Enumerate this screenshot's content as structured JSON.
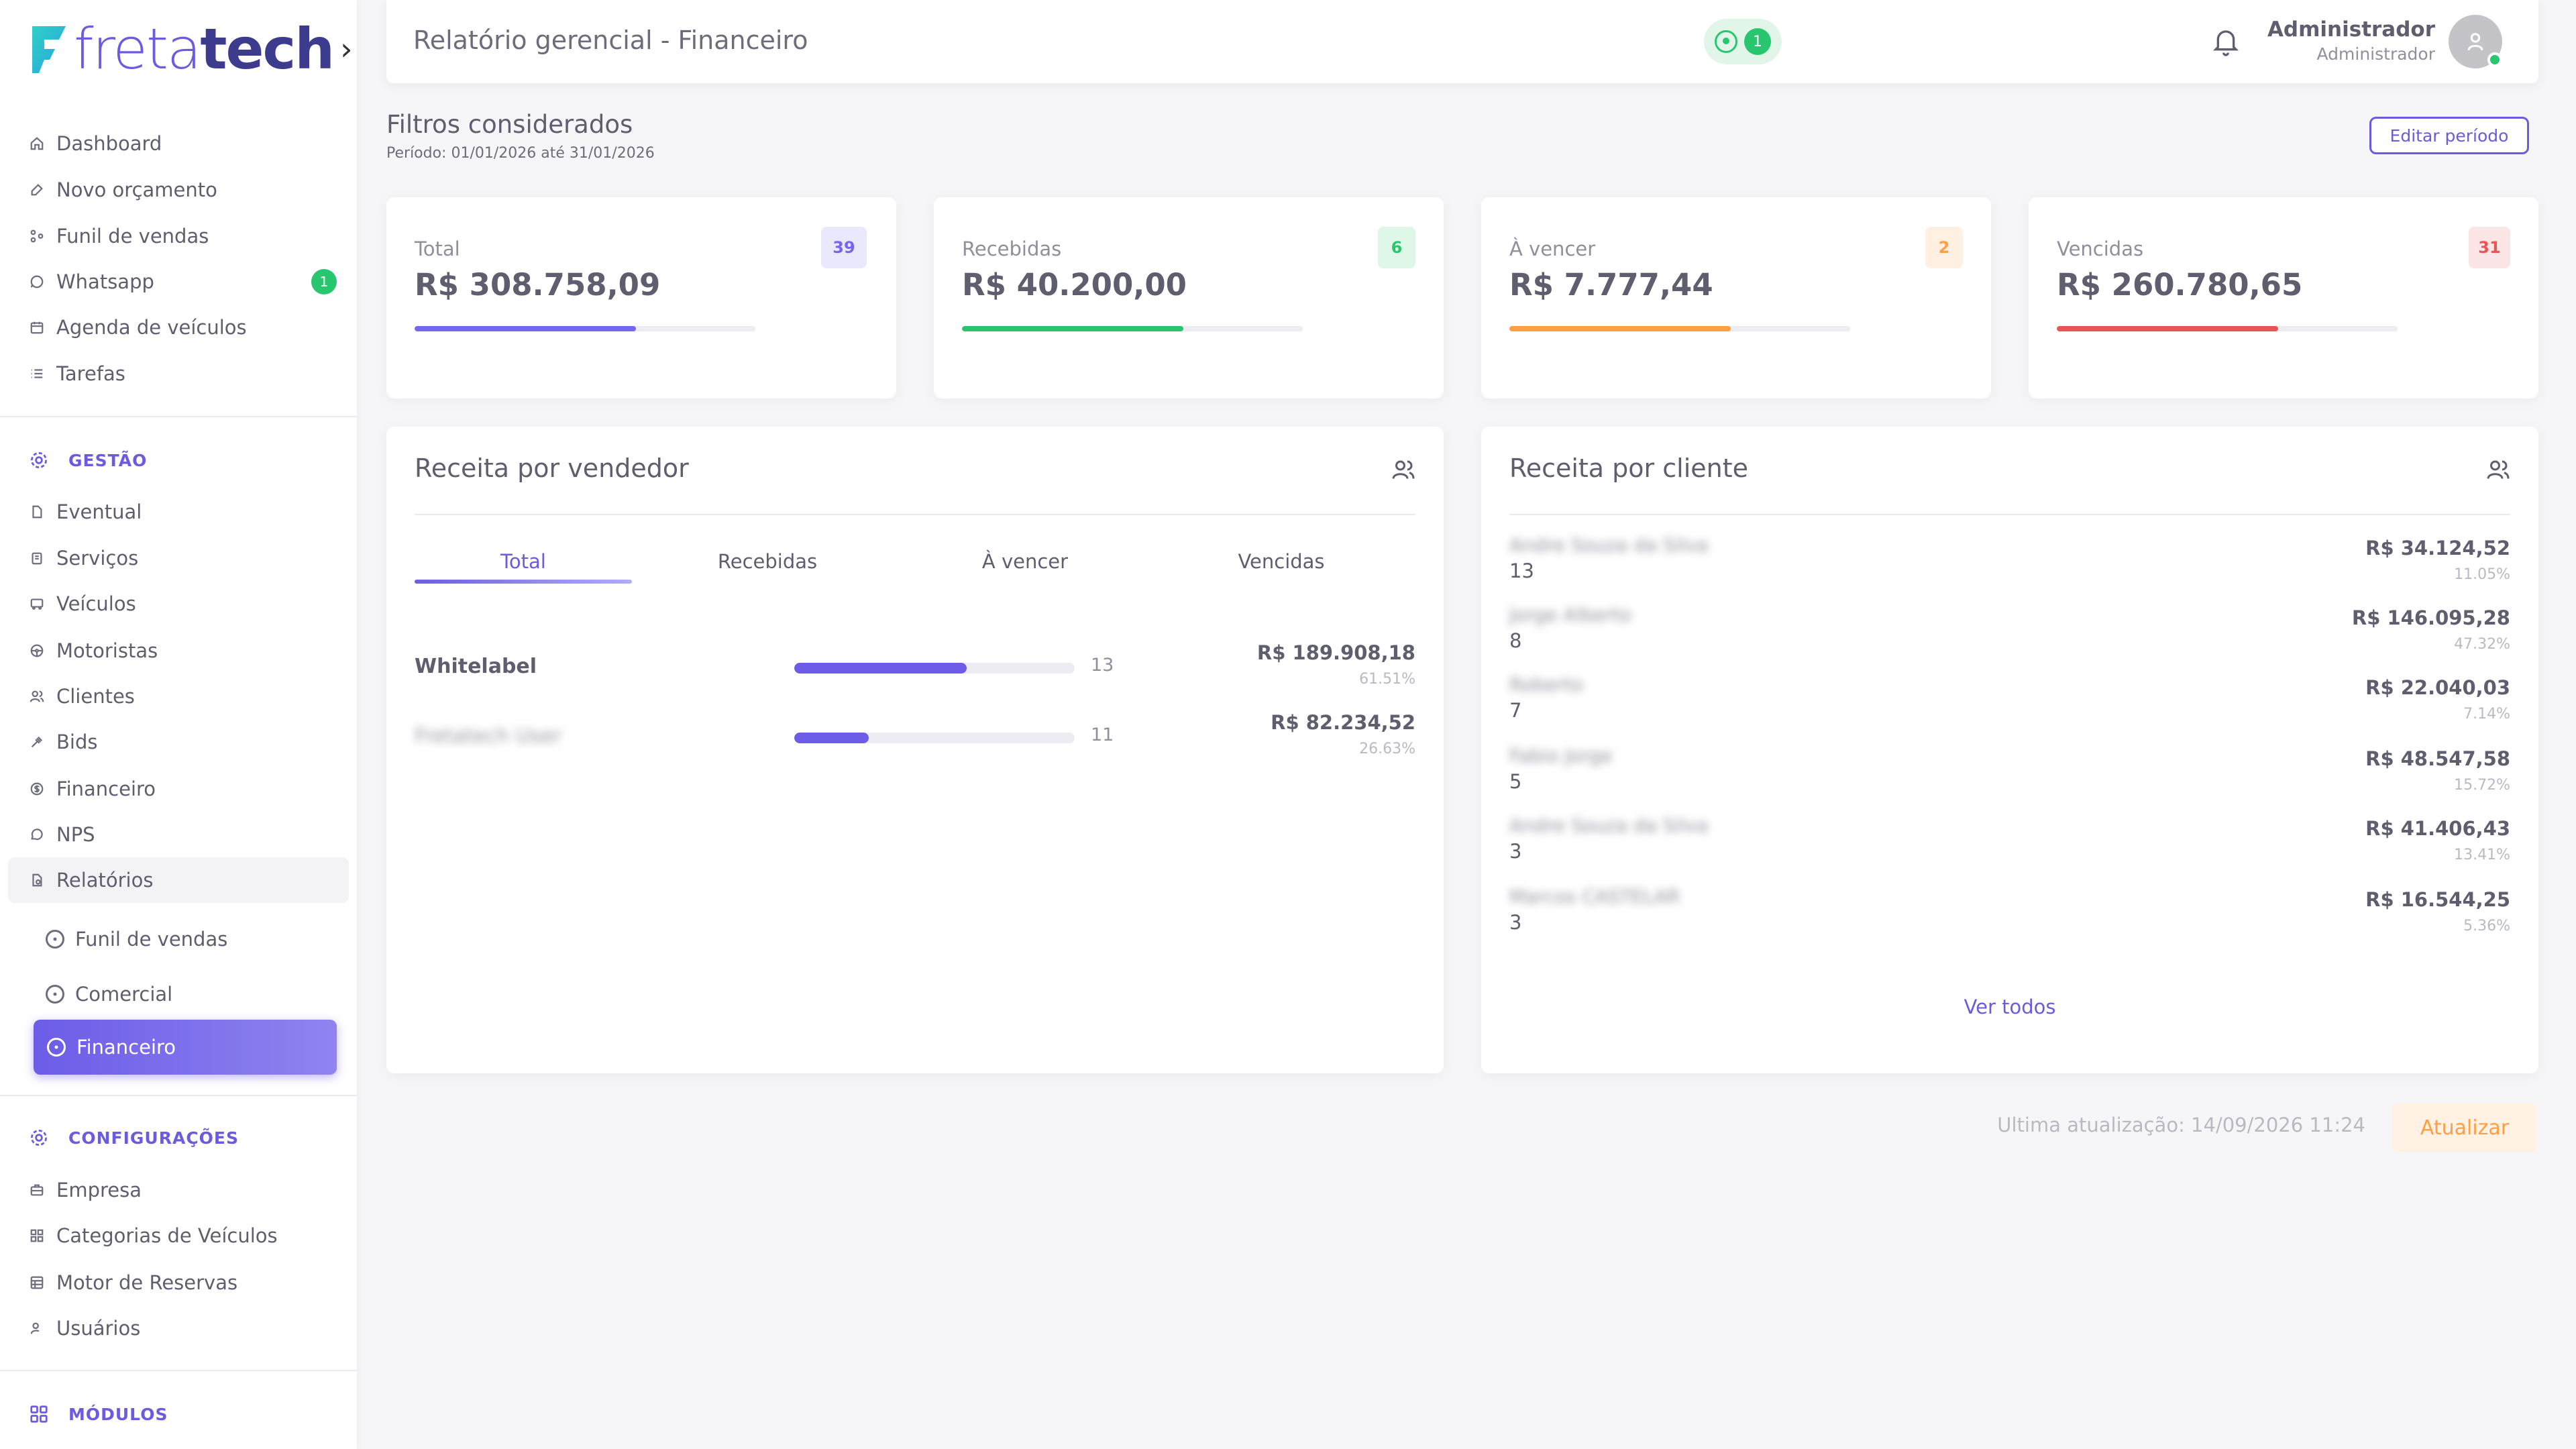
{
  "brand": {
    "logo_part1": "freta",
    "logo_part2": "tech",
    "logo_chevron": "›"
  },
  "sidebar": {
    "main_items": [
      {
        "label": "Dashboard",
        "icon": "home-icon"
      },
      {
        "label": "Novo orçamento",
        "icon": "edit-icon"
      },
      {
        "label": "Funil de vendas",
        "icon": "funnel-icon"
      },
      {
        "label": "Whatsapp",
        "icon": "whatsapp-icon",
        "badge": "1"
      },
      {
        "label": "Agenda de veículos",
        "icon": "calendar-icon"
      },
      {
        "label": "Tarefas",
        "icon": "list-icon"
      }
    ],
    "gestao": {
      "title": "GESTÃO",
      "items": [
        {
          "label": "Eventual",
          "icon": "file-icon"
        },
        {
          "label": "Serviços",
          "icon": "clipboard-icon"
        },
        {
          "label": "Veículos",
          "icon": "bus-icon"
        },
        {
          "label": "Motoristas",
          "icon": "steering-wheel-icon"
        },
        {
          "label": "Clientes",
          "icon": "users-icon"
        },
        {
          "label": "Bids",
          "icon": "gavel-icon"
        },
        {
          "label": "Financeiro",
          "icon": "dollar-icon"
        },
        {
          "label": "NPS",
          "icon": "chat-icon"
        },
        {
          "label": "Relatórios",
          "icon": "report-icon"
        }
      ]
    },
    "relatorios_sub": [
      {
        "label": "Funil de vendas"
      },
      {
        "label": "Comercial"
      },
      {
        "label": "Financeiro"
      }
    ],
    "configuracoes": {
      "title": "CONFIGURAÇÕES",
      "items": [
        {
          "label": "Empresa",
          "icon": "briefcase-icon"
        },
        {
          "label": "Categorias de Veículos",
          "icon": "grid-icon"
        },
        {
          "label": "Motor de Reservas",
          "icon": "table-icon"
        },
        {
          "label": "Usuários",
          "icon": "user-key-icon"
        }
      ]
    },
    "modulos": {
      "title": "MÓDULOS"
    }
  },
  "header": {
    "title": "Relatório gerencial - Financeiro",
    "whatsapp_count": "1",
    "user_name": "Administrador",
    "user_role": "Administrador"
  },
  "filters": {
    "title": "Filtros considerados",
    "period": "Período: 01/01/2026 até 31/01/2026",
    "edit_button": "Editar período"
  },
  "stats": [
    {
      "label": "Total",
      "value": "R$ 308.758,09",
      "badge": "39",
      "color": "#7367f0",
      "badge_bg": "#eae8fd",
      "progress": 0.65
    },
    {
      "label": "Recebidas",
      "value": "R$ 40.200,00",
      "badge": "6",
      "color": "#28c76f",
      "badge_bg": "#dff7e9",
      "progress": 0.65
    },
    {
      "label": "À vencer",
      "value": "R$ 7.777,44",
      "badge": "2",
      "color": "#ff9f43",
      "badge_bg": "#fff0e1",
      "progress": 0.65
    },
    {
      "label": "Vencidas",
      "value": "R$ 260.780,65",
      "badge": "31",
      "color": "#ea5455",
      "badge_bg": "#fce5e6",
      "progress": 0.65
    }
  ],
  "vendor_panel": {
    "title": "Receita por vendedor",
    "tabs": [
      "Total",
      "Recebidas",
      "À vencer",
      "Vencidas"
    ],
    "rows": [
      {
        "name": "Whitelabel",
        "count": "13",
        "amount": "R$ 189.908,18",
        "pct": "61.51%",
        "fill": 0.615,
        "blurred": false
      },
      {
        "name": "Fretatech User",
        "count": "11",
        "amount": "R$ 82.234,52",
        "pct": "26.63%",
        "fill": 0.266,
        "blurred": true
      }
    ]
  },
  "client_panel": {
    "title": "Receita por cliente",
    "see_all": "Ver todos",
    "rows": [
      {
        "name": "Andre Souza da Silva",
        "count": "13",
        "amount": "R$ 34.124,52",
        "pct": "11.05%"
      },
      {
        "name": "Jorge Alberto",
        "count": "8",
        "amount": "R$ 146.095,28",
        "pct": "47.32%"
      },
      {
        "name": "Roberto",
        "count": "7",
        "amount": "R$ 22.040,03",
        "pct": "7.14%"
      },
      {
        "name": "Fabio Jorge",
        "count": "5",
        "amount": "R$ 48.547,58",
        "pct": "15.72%"
      },
      {
        "name": "Andre Souza da Silva",
        "count": "3",
        "amount": "R$ 41.406,43",
        "pct": "13.41%"
      },
      {
        "name": "Marcos CASTELAR",
        "count": "3",
        "amount": "R$ 16.544,25",
        "pct": "5.36%"
      }
    ]
  },
  "footer": {
    "last_update": "Ultima atualização: 14/09/2026 11:24",
    "update_button": "Atualizar"
  }
}
